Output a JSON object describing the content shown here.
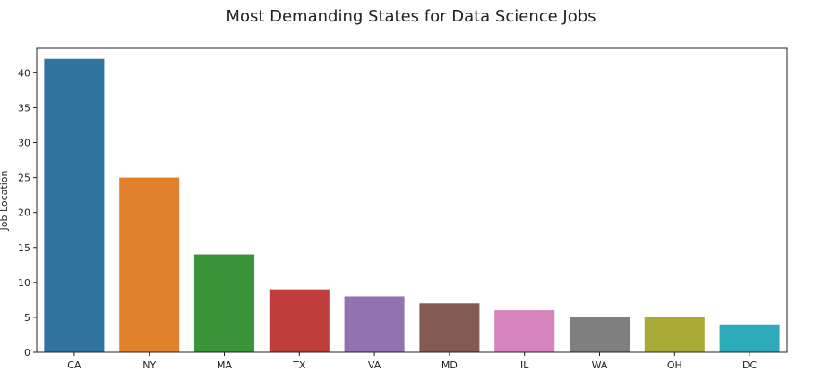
{
  "chart_data": {
    "type": "bar",
    "title": "Most Demanding States for Data Science Jobs",
    "xlabel": "",
    "ylabel": "Job Location",
    "categories": [
      "CA",
      "NY",
      "MA",
      "TX",
      "VA",
      "MD",
      "IL",
      "WA",
      "OH",
      "DC"
    ],
    "values": [
      42,
      25,
      14,
      9,
      8,
      7,
      6,
      5,
      5,
      4
    ],
    "colors": [
      "#3274a1",
      "#e1812c",
      "#3a923a",
      "#c03d3e",
      "#9372b2",
      "#845b53",
      "#d684bd",
      "#7f7f7f",
      "#a9aa35",
      "#2eabb8"
    ],
    "ylim": [
      0,
      43.5
    ],
    "yticks": [
      0,
      5,
      10,
      15,
      20,
      25,
      30,
      35,
      40
    ],
    "grid": false,
    "legend": "none"
  }
}
